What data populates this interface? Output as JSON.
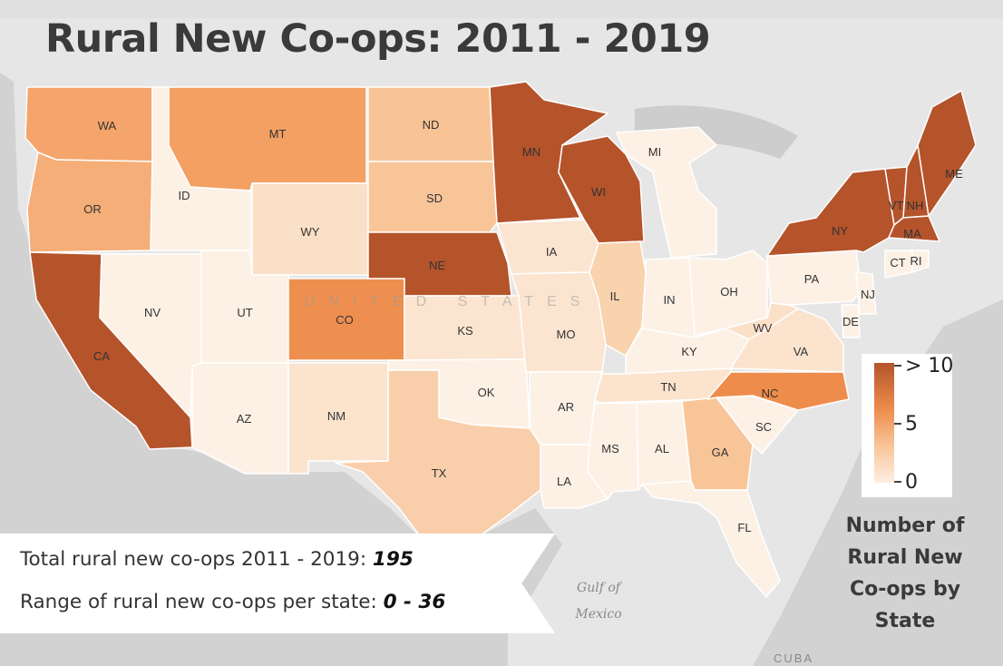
{
  "title": "Rural New Co-ops: 2011 - 2019",
  "stats": {
    "total_label": "Total rural new co-ops 2011 - 2019:",
    "total_value": "195",
    "range_label": "Range of rural new co-ops per state:",
    "range_value": "0 - 36"
  },
  "legend": {
    "title_lines": [
      "Number of",
      "Rural New",
      "Co-ops by",
      "State"
    ],
    "max_label": "> 10",
    "mid_label": "5",
    "min_label": "0"
  },
  "map_labels": {
    "country": "UNITED STATES",
    "gulf_line1": "Gulf of",
    "gulf_line2": "Mexico",
    "cuba": "CUBA"
  },
  "colors": {
    "ocean": "#d2d2d2",
    "land": "#e6e6e6",
    "level_high": "#b5532b",
    "level_mid_high": "#ee8f4f",
    "level_mid": "#f5b482",
    "level_low": "#f9d2b1",
    "level_very_low": "#fce3cf",
    "level_zero": "#fdf1e6"
  },
  "states": [
    {
      "abbr": "WA",
      "level": "mid",
      "color": "#f5a56b"
    },
    {
      "abbr": "OR",
      "level": "mid",
      "color": "#f5ae78"
    },
    {
      "abbr": "CA",
      "level": "high",
      "color": "#b5532b"
    },
    {
      "abbr": "ID",
      "level": "zero",
      "color": "#fdf0e4"
    },
    {
      "abbr": "NV",
      "level": "zero",
      "color": "#fdf0e4"
    },
    {
      "abbr": "MT",
      "level": "mid_high",
      "color": "#f3a062"
    },
    {
      "abbr": "WY",
      "level": "low",
      "color": "#fbe0c8"
    },
    {
      "abbr": "UT",
      "level": "zero",
      "color": "#fdf0e4"
    },
    {
      "abbr": "AZ",
      "level": "zero",
      "color": "#fdf1e6"
    },
    {
      "abbr": "CO",
      "level": "mid_high",
      "color": "#ee8f4f"
    },
    {
      "abbr": "NM",
      "level": "low",
      "color": "#fbe3cd"
    },
    {
      "abbr": "ND",
      "level": "mid",
      "color": "#f8c496"
    },
    {
      "abbr": "SD",
      "level": "mid",
      "color": "#f8c599"
    },
    {
      "abbr": "NE",
      "level": "high",
      "color": "#b5532b"
    },
    {
      "abbr": "KS",
      "level": "low",
      "color": "#fbe5d1"
    },
    {
      "abbr": "OK",
      "level": "zero",
      "color": "#fdf1e6"
    },
    {
      "abbr": "TX",
      "level": "mid",
      "color": "#f9cfab"
    },
    {
      "abbr": "MN",
      "level": "high",
      "color": "#b5532b"
    },
    {
      "abbr": "IA",
      "level": "low",
      "color": "#fbe5d1"
    },
    {
      "abbr": "MO",
      "level": "low",
      "color": "#fbe5d1"
    },
    {
      "abbr": "AR",
      "level": "zero",
      "color": "#fdf1e6"
    },
    {
      "abbr": "LA",
      "level": "zero",
      "color": "#fdf1e6"
    },
    {
      "abbr": "WI",
      "level": "high",
      "color": "#b5532b"
    },
    {
      "abbr": "IL",
      "level": "mid",
      "color": "#f9d2ae"
    },
    {
      "abbr": "MI",
      "level": "zero",
      "color": "#fdf1e6"
    },
    {
      "abbr": "IN",
      "level": "zero",
      "color": "#fdf1e6"
    },
    {
      "abbr": "OH",
      "level": "zero",
      "color": "#fdf1e6"
    },
    {
      "abbr": "KY",
      "level": "zero",
      "color": "#fdf1e6"
    },
    {
      "abbr": "TN",
      "level": "low",
      "color": "#fbe3cd"
    },
    {
      "abbr": "MS",
      "level": "zero",
      "color": "#fdf1e6"
    },
    {
      "abbr": "AL",
      "level": "zero",
      "color": "#fdf1e6"
    },
    {
      "abbr": "GA",
      "level": "mid",
      "color": "#f8c599"
    },
    {
      "abbr": "FL",
      "level": "zero",
      "color": "#fdf1e6"
    },
    {
      "abbr": "SC",
      "level": "zero",
      "color": "#fdf1e6"
    },
    {
      "abbr": "NC",
      "level": "mid_high",
      "color": "#ee8c4c"
    },
    {
      "abbr": "VA",
      "level": "low",
      "color": "#fbe3cd"
    },
    {
      "abbr": "WV",
      "level": "low",
      "color": "#fbe0c8"
    },
    {
      "abbr": "PA",
      "level": "zero",
      "color": "#fdf1e6"
    },
    {
      "abbr": "NY",
      "level": "high",
      "color": "#b5532b"
    },
    {
      "abbr": "VT",
      "level": "high",
      "color": "#b5532b"
    },
    {
      "abbr": "NH",
      "level": "high",
      "color": "#b5532b"
    },
    {
      "abbr": "ME",
      "level": "high",
      "color": "#b5532b"
    },
    {
      "abbr": "MA",
      "level": "high",
      "color": "#b5532b"
    },
    {
      "abbr": "CT",
      "level": "zero",
      "color": "#fdf1e6"
    },
    {
      "abbr": "RI",
      "level": "zero",
      "color": "#fdf1e6"
    },
    {
      "abbr": "NJ",
      "level": "zero",
      "color": "#fdf1e6"
    },
    {
      "abbr": "DE",
      "level": "zero",
      "color": "#fdf1e6"
    }
  ]
}
